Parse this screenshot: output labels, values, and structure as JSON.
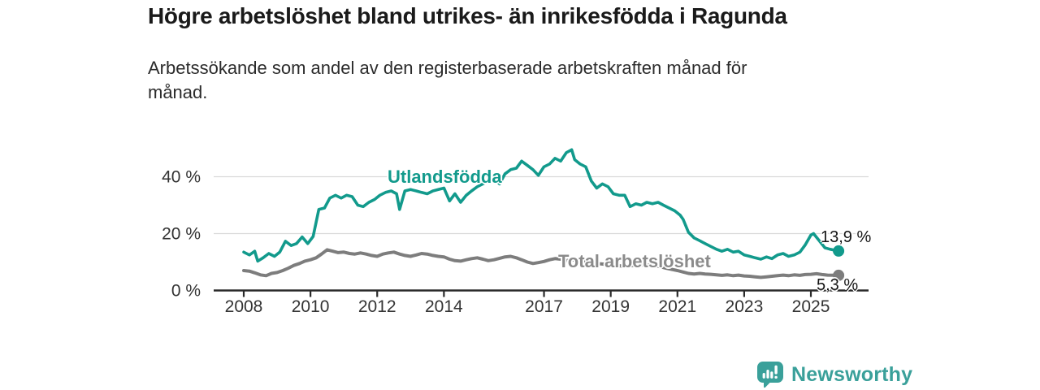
{
  "chart_data": {
    "type": "line",
    "title": "Högre arbetslöshet bland utrikes- än inrikesfödda i Ragunda",
    "subtitle_lines": [
      "Arbetssökande som andel av den registerbaserade arbetskraften månad för",
      "månad."
    ],
    "x_axis": {
      "ticks": [
        2008,
        2010,
        2012,
        2014,
        2017,
        2019,
        2021,
        2023,
        2025
      ],
      "xlim": [
        2007.1,
        2026.7
      ]
    },
    "y_axis": {
      "unit": "%",
      "ticks": [
        {
          "value": 0,
          "label": "0 %"
        },
        {
          "value": 20,
          "label": "20 %"
        },
        {
          "value": 40,
          "label": "40 %"
        }
      ],
      "ylim": [
        0,
        52
      ]
    },
    "grid": "horizontal",
    "legend_position": "inline-labels",
    "style": {
      "grid_color": "#d9d9d9",
      "axis_color": "#2a2a2a",
      "tick_color": "#333333"
    },
    "series": [
      {
        "id": "utlandsfodda",
        "name": "Utlandsfödda",
        "color": "#129a8c",
        "line_width": 3.6,
        "end_label": "13,9 %",
        "end_value": 13.9,
        "x": [
          2008.0,
          2008.17,
          2008.33,
          2008.42,
          2008.58,
          2008.75,
          2008.92,
          2009.08,
          2009.25,
          2009.42,
          2009.58,
          2009.75,
          2009.92,
          2010.08,
          2010.25,
          2010.42,
          2010.58,
          2010.75,
          2010.92,
          2011.08,
          2011.25,
          2011.42,
          2011.58,
          2011.75,
          2011.92,
          2012.08,
          2012.25,
          2012.42,
          2012.58,
          2012.67,
          2012.83,
          2013.0,
          2013.17,
          2013.33,
          2013.5,
          2013.67,
          2013.83,
          2014.0,
          2014.17,
          2014.33,
          2014.5,
          2014.67,
          2014.83,
          2015.0,
          2015.17,
          2015.33,
          2015.5,
          2015.67,
          2015.83,
          2016.0,
          2016.17,
          2016.33,
          2016.5,
          2016.67,
          2016.83,
          2017.0,
          2017.17,
          2017.33,
          2017.5,
          2017.67,
          2017.83,
          2017.92,
          2018.08,
          2018.25,
          2018.42,
          2018.58,
          2018.75,
          2018.92,
          2019.08,
          2019.25,
          2019.42,
          2019.58,
          2019.75,
          2019.92,
          2020.08,
          2020.25,
          2020.42,
          2020.58,
          2020.75,
          2020.92,
          2021.08,
          2021.17,
          2021.33,
          2021.5,
          2021.67,
          2021.83,
          2022.0,
          2022.17,
          2022.33,
          2022.5,
          2022.67,
          2022.83,
          2023.0,
          2023.17,
          2023.33,
          2023.5,
          2023.67,
          2023.83,
          2024.0,
          2024.17,
          2024.33,
          2024.5,
          2024.67,
          2024.83,
          2025.0,
          2025.08,
          2025.25,
          2025.42,
          2025.58,
          2025.83
        ],
        "values": [
          13.5,
          12.5,
          13.8,
          10.3,
          11.5,
          13.0,
          12.0,
          13.5,
          17.3,
          15.8,
          16.5,
          18.8,
          16.5,
          19.0,
          28.5,
          29.0,
          32.5,
          33.5,
          32.5,
          33.5,
          33.0,
          30.0,
          29.5,
          31.0,
          32.0,
          33.5,
          34.5,
          35.0,
          34.0,
          28.5,
          35.0,
          35.5,
          35.0,
          34.5,
          34.0,
          35.0,
          35.5,
          36.0,
          31.5,
          34.0,
          31.0,
          33.5,
          35.0,
          36.5,
          37.5,
          38.5,
          39.5,
          37.5,
          41.0,
          42.5,
          43.0,
          45.5,
          44.0,
          42.5,
          40.5,
          43.5,
          44.5,
          46.5,
          45.5,
          48.5,
          49.5,
          46.0,
          44.5,
          43.5,
          38.5,
          36.0,
          37.5,
          36.5,
          34.0,
          33.5,
          33.5,
          29.5,
          30.5,
          30.0,
          31.0,
          30.5,
          31.0,
          30.0,
          29.0,
          28.0,
          26.5,
          25.0,
          20.5,
          18.5,
          17.5,
          16.5,
          15.5,
          14.5,
          13.8,
          14.5,
          13.5,
          13.8,
          12.5,
          12.0,
          11.5,
          11.0,
          11.8,
          11.2,
          12.5,
          13.0,
          12.0,
          12.5,
          13.5,
          16.0,
          19.5,
          20.0,
          17.5,
          15.0,
          14.5,
          13.9
        ],
        "label_color": "#129a8c"
      },
      {
        "id": "total",
        "name": "Total arbetslöshet",
        "color": "#7d7d7d",
        "line_width": 4,
        "end_label": "5,3 %",
        "end_value": 5.3,
        "x": [
          2008.0,
          2008.17,
          2008.33,
          2008.5,
          2008.67,
          2008.83,
          2009.0,
          2009.17,
          2009.33,
          2009.5,
          2009.67,
          2009.83,
          2010.0,
          2010.17,
          2010.33,
          2010.5,
          2010.67,
          2010.83,
          2011.0,
          2011.17,
          2011.33,
          2011.5,
          2011.67,
          2011.83,
          2012.0,
          2012.17,
          2012.33,
          2012.5,
          2012.67,
          2012.83,
          2013.0,
          2013.17,
          2013.33,
          2013.5,
          2013.67,
          2013.83,
          2014.0,
          2014.17,
          2014.33,
          2014.5,
          2014.67,
          2014.83,
          2015.0,
          2015.17,
          2015.33,
          2015.5,
          2015.67,
          2015.83,
          2016.0,
          2016.17,
          2016.33,
          2016.5,
          2016.67,
          2016.83,
          2017.0,
          2017.17,
          2017.33,
          2017.5,
          2017.67,
          2017.83,
          2018.0,
          2018.33,
          2018.67,
          2019.0,
          2019.33,
          2019.67,
          2020.0,
          2020.33,
          2020.67,
          2021.0,
          2021.17,
          2021.33,
          2021.5,
          2021.67,
          2021.83,
          2022.0,
          2022.17,
          2022.33,
          2022.5,
          2022.67,
          2022.83,
          2023.0,
          2023.17,
          2023.33,
          2023.5,
          2023.67,
          2023.83,
          2024.0,
          2024.17,
          2024.33,
          2024.5,
          2024.67,
          2024.83,
          2025.0,
          2025.17,
          2025.33,
          2025.5,
          2025.83
        ],
        "values": [
          7.0,
          6.8,
          6.2,
          5.5,
          5.2,
          6.0,
          6.3,
          7.0,
          7.8,
          8.8,
          9.5,
          10.3,
          10.8,
          11.5,
          12.8,
          14.3,
          13.8,
          13.3,
          13.5,
          13.0,
          12.8,
          13.2,
          12.8,
          12.3,
          12.0,
          12.8,
          13.2,
          13.5,
          12.8,
          12.3,
          12.0,
          12.5,
          13.0,
          12.8,
          12.3,
          12.0,
          11.8,
          11.0,
          10.5,
          10.3,
          10.8,
          11.2,
          11.5,
          11.0,
          10.5,
          10.8,
          11.3,
          11.8,
          12.0,
          11.5,
          10.8,
          10.0,
          9.5,
          9.8,
          10.2,
          10.8,
          11.2,
          11.0,
          10.5,
          10.8,
          10.5,
          10.0,
          9.4,
          9.0,
          8.6,
          8.8,
          9.0,
          8.8,
          7.8,
          7.0,
          6.5,
          6.0,
          5.8,
          6.0,
          5.8,
          5.7,
          5.5,
          5.3,
          5.5,
          5.2,
          5.4,
          5.1,
          5.0,
          4.8,
          4.6,
          4.8,
          5.0,
          5.2,
          5.4,
          5.2,
          5.5,
          5.3,
          5.6,
          5.7,
          5.9,
          5.6,
          5.4,
          5.3
        ],
        "label_color": "#8b8b8b"
      }
    ]
  },
  "branding": {
    "logo_text": "Newsworthy",
    "logo_color": "#3aa09a"
  }
}
